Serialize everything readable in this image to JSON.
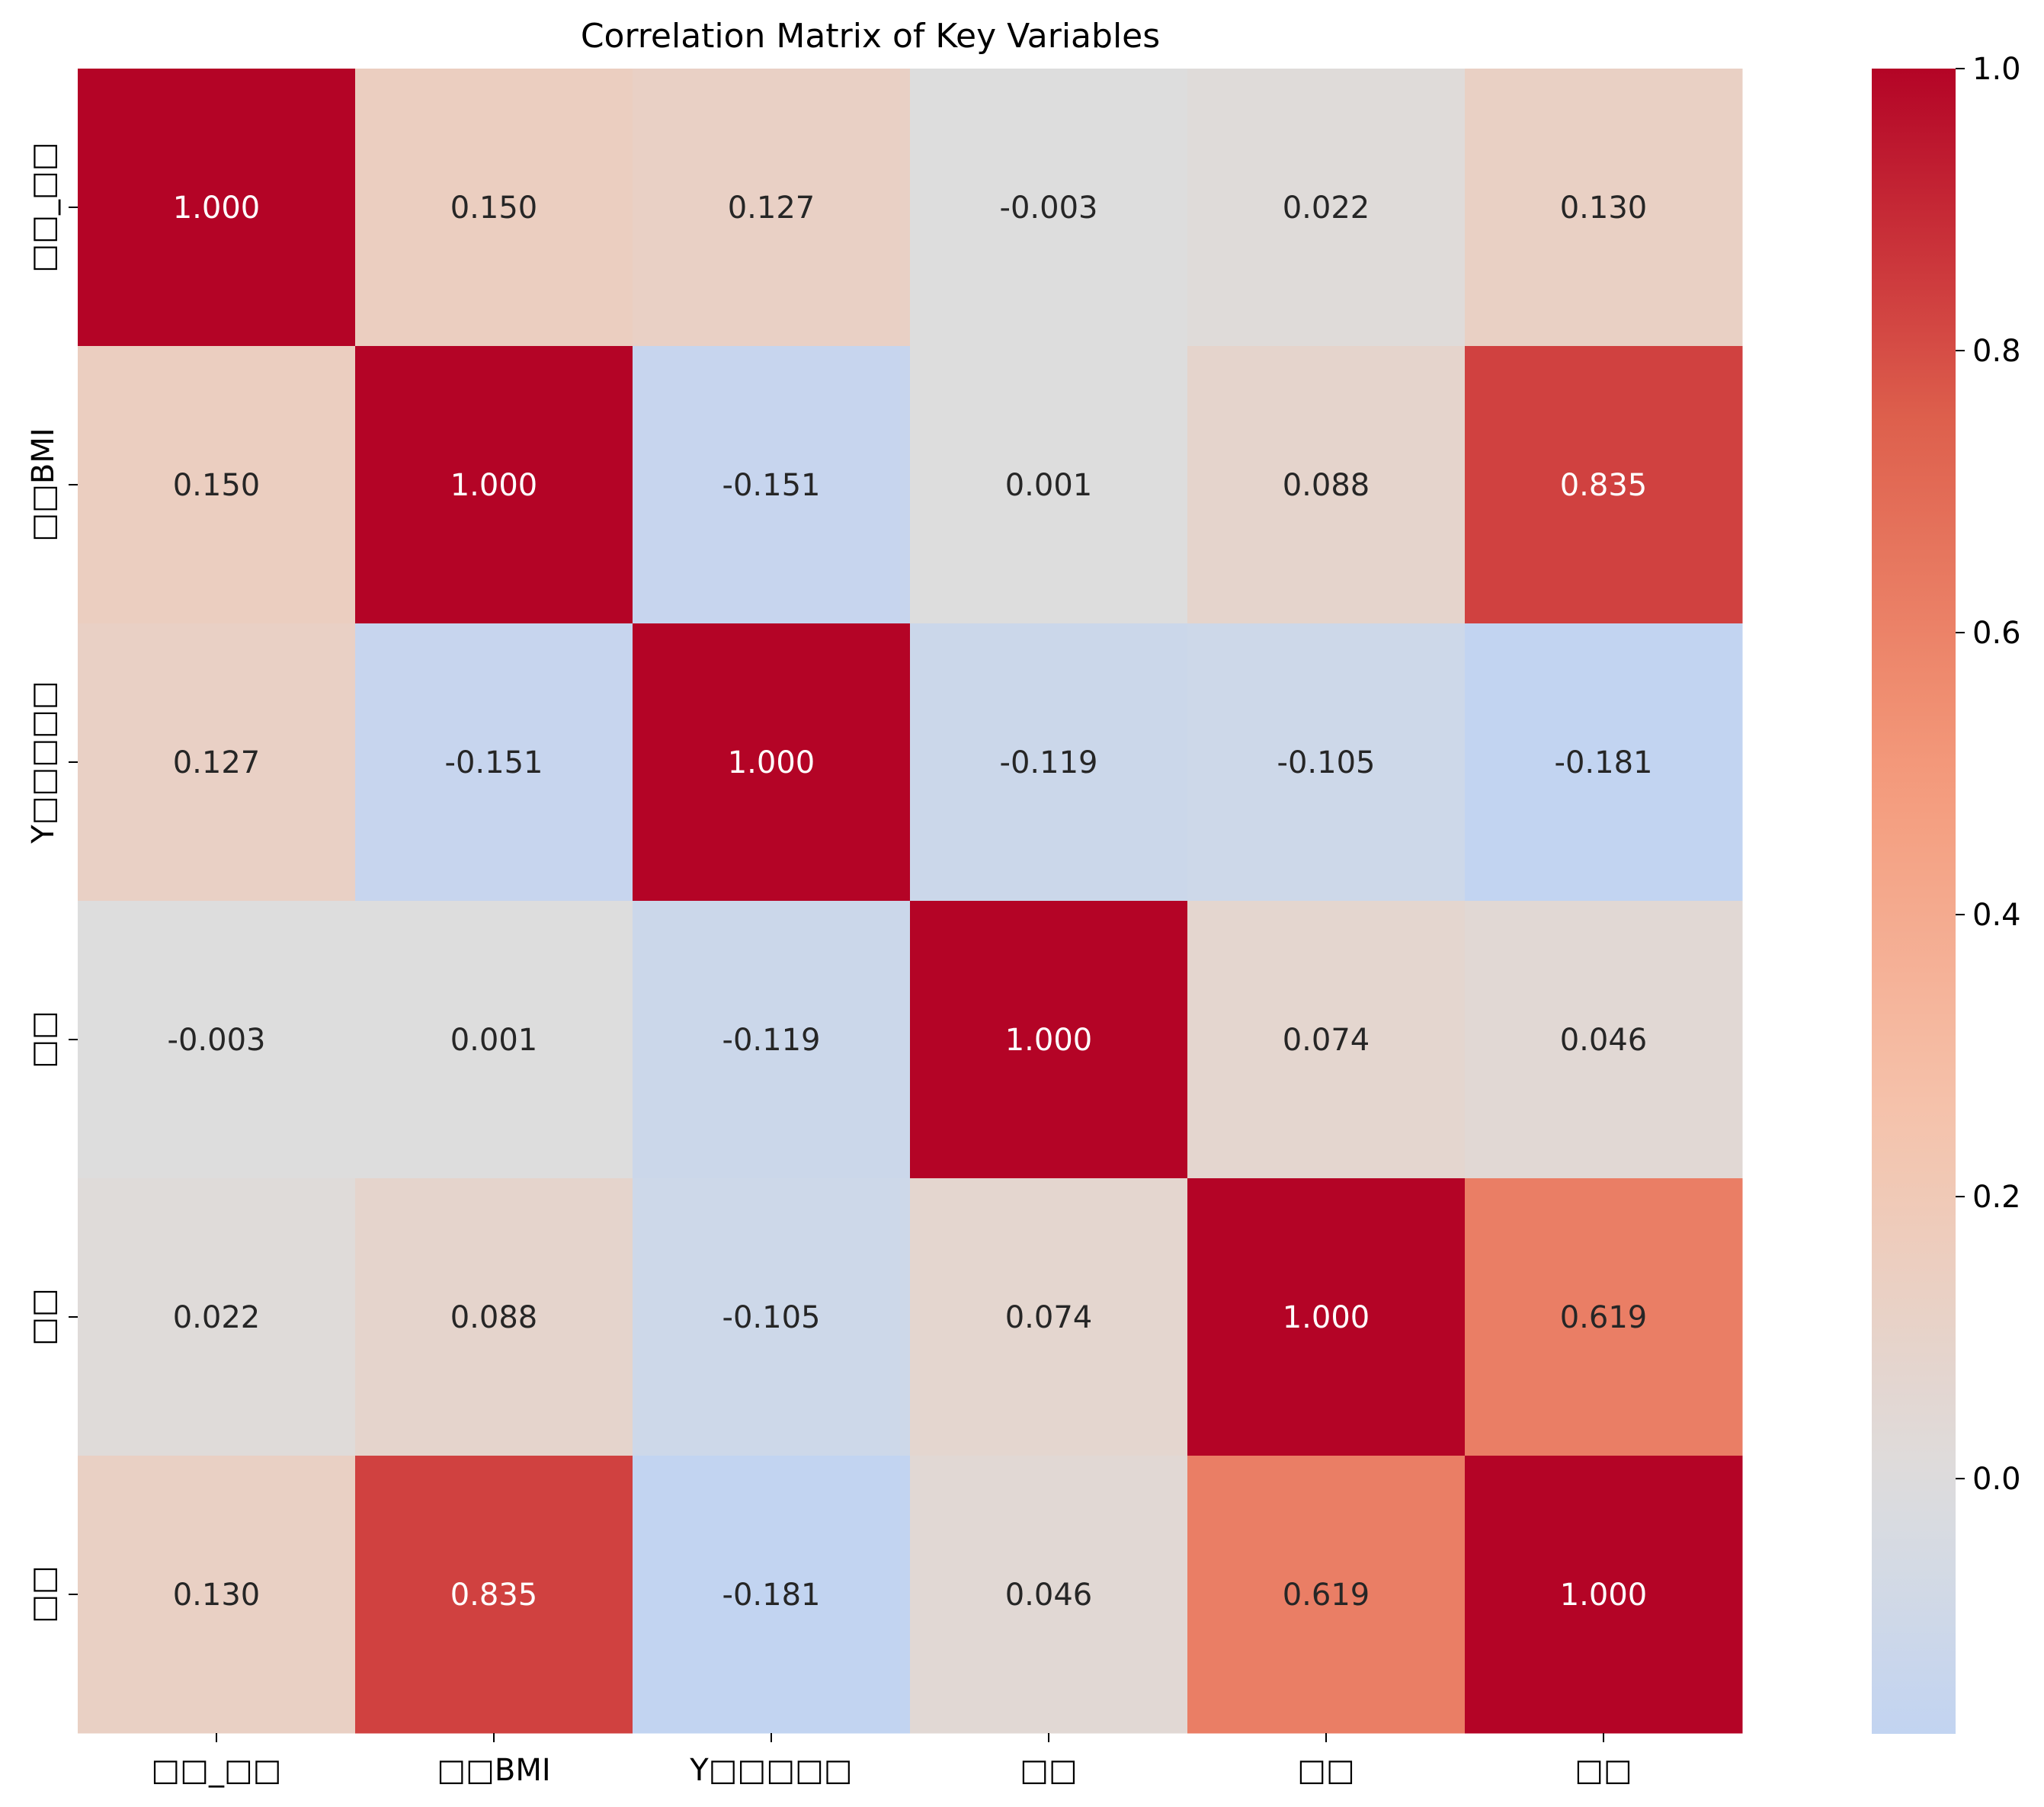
{
  "chart_data": {
    "type": "heatmap",
    "title": "Correlation Matrix of Key Variables",
    "xlabel": "",
    "ylabel": "",
    "labels": [
      "□□_□□",
      "□□BMI",
      "Y□□□□□",
      "□□",
      "□□",
      "□□"
    ],
    "matrix": [
      [
        1.0,
        0.15,
        0.127,
        -0.003,
        0.022,
        0.13
      ],
      [
        0.15,
        1.0,
        -0.151,
        0.001,
        0.088,
        0.835
      ],
      [
        0.127,
        -0.151,
        1.0,
        -0.119,
        -0.105,
        -0.181
      ],
      [
        -0.003,
        0.001,
        -0.119,
        1.0,
        0.074,
        0.046
      ],
      [
        0.022,
        0.088,
        -0.105,
        0.074,
        1.0,
        0.619
      ],
      [
        0.13,
        0.835,
        -0.181,
        0.046,
        0.619,
        1.0
      ]
    ],
    "value_format": "3 decimals",
    "colormap": "coolwarm",
    "colormap_center": 0,
    "colorbar": {
      "min": -0.181,
      "max": 1.0,
      "ticks": [
        0.0,
        0.2,
        0.4,
        0.6,
        0.8,
        1.0
      ],
      "tick_labels": [
        "0.0",
        "0.2",
        "0.4",
        "0.6",
        "0.8",
        "1.0"
      ]
    },
    "grid": false,
    "legend": "colorbar-right",
    "colors": {
      "dark_text": "#262626",
      "light_text": "#ffffff",
      "axis": "#000000"
    }
  }
}
